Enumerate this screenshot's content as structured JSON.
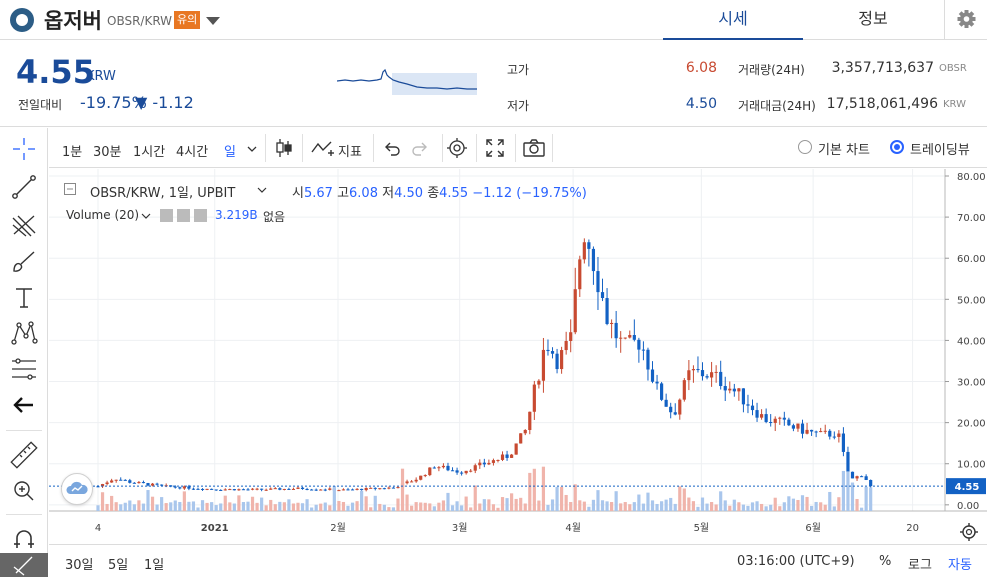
{
  "header": {
    "coin_name": "옵저버",
    "pair": "OBSR/KRW",
    "warning_badge": "유의",
    "tabs": [
      {
        "label": "시세"
      },
      {
        "label": "정보"
      }
    ]
  },
  "summary": {
    "price": "4.55",
    "price_unit": "KRW",
    "prev_label": "전일대비",
    "change_rate": "-19.75%",
    "change_value": "▼ -1.12",
    "high_label": "고가",
    "high_value": "6.08",
    "low_label": "저가",
    "low_value": "4.50",
    "volume_label": "거래량(24H)",
    "volume_value": "3,357,713,637",
    "volume_unit": "OBSR",
    "amount_label": "거래대금(24H)",
    "amount_value": "17,518,061,496",
    "amount_unit": "KRW"
  },
  "toolbar": {
    "intervals": [
      {
        "label": "1분"
      },
      {
        "label": "30분"
      },
      {
        "label": "1시간"
      },
      {
        "label": "4시간"
      },
      {
        "label": "일"
      }
    ],
    "indicator_label": "지표",
    "basic_chart_label": "기본 차트",
    "trading_view_label": "트레이딩뷰"
  },
  "legend": {
    "symbol": "OBSR/KRW, 1일, UPBIT",
    "open_label": "시",
    "open_value": "5.67",
    "high_label": "고",
    "high_value": "6.08",
    "low_label": "저",
    "low_value": "4.50",
    "close_label": "종",
    "close_value": "4.55",
    "change": "−1.12 (−19.75%)",
    "volume_label": "Volume (20)",
    "volume_value": "3.219B",
    "volume_ma_label": "없음"
  },
  "chart_data": {
    "type": "candlestick",
    "y_ticks": [
      "80.00",
      "70.00",
      "60.00",
      "50.00",
      "40.00",
      "30.00",
      "20.00",
      "10.00",
      "0.00"
    ],
    "ylim": [
      -1.5,
      80
    ],
    "x_ticks": [
      {
        "label": "4",
        "pos": 0.0
      },
      {
        "label": "2021",
        "pos": 0.142
      },
      {
        "label": "2월",
        "pos": 0.292
      },
      {
        "label": "3월",
        "pos": 0.44
      },
      {
        "label": "4월",
        "pos": 0.578
      },
      {
        "label": "5월",
        "pos": 0.734
      },
      {
        "label": "6월",
        "pos": 0.87
      },
      {
        "label": "20",
        "pos": 0.991
      }
    ],
    "last_price": 4.55,
    "last_price_label": "4.55",
    "colors": {
      "up": "#c84a31",
      "down": "#1261c4",
      "vol_up": "#f0b4ab",
      "vol_down": "#a9c6ec"
    },
    "close_path": [
      [
        0,
        4.5
      ],
      [
        0.02,
        6.5
      ],
      [
        0.04,
        5.5
      ],
      [
        0.08,
        4.5
      ],
      [
        0.14,
        3.8
      ],
      [
        0.2,
        3.7
      ],
      [
        0.25,
        4.0
      ],
      [
        0.3,
        3.6
      ],
      [
        0.36,
        4.2
      ],
      [
        0.39,
        6.5
      ],
      [
        0.41,
        9.5
      ],
      [
        0.44,
        8.0
      ],
      [
        0.47,
        10.0
      ],
      [
        0.5,
        12.0
      ],
      [
        0.52,
        18.0
      ],
      [
        0.545,
        40.0
      ],
      [
        0.56,
        35.0
      ],
      [
        0.575,
        40.0
      ],
      [
        0.59,
        68.0
      ],
      [
        0.6,
        62.0
      ],
      [
        0.62,
        45.0
      ],
      [
        0.64,
        38.0
      ],
      [
        0.66,
        40.0
      ],
      [
        0.68,
        28.0
      ],
      [
        0.7,
        22.0
      ],
      [
        0.72,
        32.0
      ],
      [
        0.74,
        32.0
      ],
      [
        0.76,
        30.0
      ],
      [
        0.79,
        25.0
      ],
      [
        0.81,
        21.0
      ],
      [
        0.83,
        20.0
      ],
      [
        0.86,
        18.0
      ],
      [
        0.88,
        17.0
      ],
      [
        0.9,
        17.5
      ],
      [
        0.915,
        6.0
      ],
      [
        0.93,
        7.5
      ],
      [
        0.94,
        4.55
      ]
    ]
  },
  "bottom": {
    "ranges": [
      {
        "label": "30일"
      },
      {
        "label": "5일"
      },
      {
        "label": "1일"
      }
    ],
    "time": "03:16:00 (UTC+9)",
    "percent_label": "%",
    "log_label": "로그",
    "auto_label": "자동"
  }
}
